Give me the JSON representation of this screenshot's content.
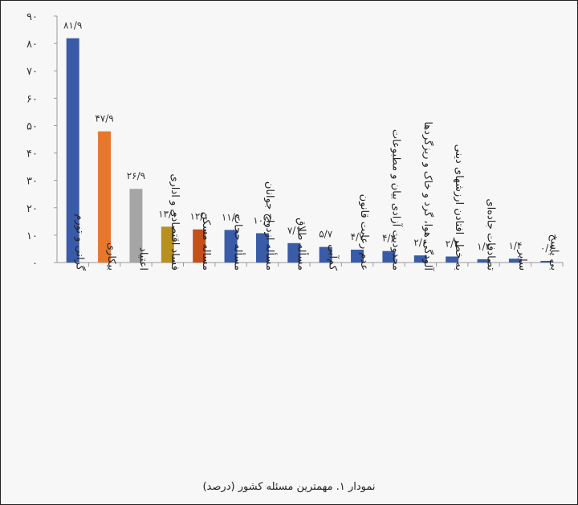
{
  "chart_data": {
    "type": "bar",
    "caption": "نمودار ۱. مهمترین مسئله کشور (درصد)",
    "categories": [
      "گرانی و تورم",
      "بیکاری",
      "اعتیاد",
      "فساد اقتصادی و اداری",
      "مساله مسکن",
      "مسأله حجاب",
      "مسأله ازدواج جوانان",
      "مسأله طلاق",
      "کم‌آبی",
      "عدم رعایت قانون",
      "محدودیت آزادی بیان و مطبوعات",
      "آلودگی هوا، گرد و خاک و ریزگردها",
      "به خطر افتادن ارزشهای دینی",
      "تصادفات جاده‌ای",
      "سایر",
      "بی پاسخ"
    ],
    "values": [
      81.9,
      47.9,
      26.9,
      13.1,
      12.1,
      11.9,
      10.7,
      7.1,
      5.7,
      4.7,
      4.2,
      2.6,
      2.2,
      1.2,
      1.4,
      0.6
    ],
    "value_labels": [
      "۸۱/۹",
      "۴۷/۹",
      "۲۶/۹",
      "۱۳/۱",
      "۱۲/۱",
      "۱۱/۹",
      "۱۰/۷",
      "۷/۱",
      "۵/۷",
      "۴/۷",
      "۴/۲",
      "۲/۶",
      "۲/۲",
      "۱/۲",
      "۱/۴",
      "۰/۶"
    ],
    "colors": [
      "#3a5ba8",
      "#e8772e",
      "#a5a5a5",
      "#b8901e",
      "#c4501a",
      "#3a5ba8",
      "#3a5ba8",
      "#3a5ba8",
      "#3a5ba8",
      "#3a5ba8",
      "#3a5ba8",
      "#3a5ba8",
      "#3a5ba8",
      "#3a5ba8",
      "#3a5ba8",
      "#3a5ba8"
    ],
    "ylim": [
      0,
      90
    ],
    "yticks": [
      0,
      10,
      20,
      30,
      40,
      50,
      60,
      70,
      80,
      90
    ],
    "ytick_labels": [
      "۰",
      "۱۰",
      "۲۰",
      "۳۰",
      "۴۰",
      "۵۰",
      "۶۰",
      "۷۰",
      "۸۰",
      "۹۰"
    ],
    "grid": false,
    "legend": "none"
  }
}
